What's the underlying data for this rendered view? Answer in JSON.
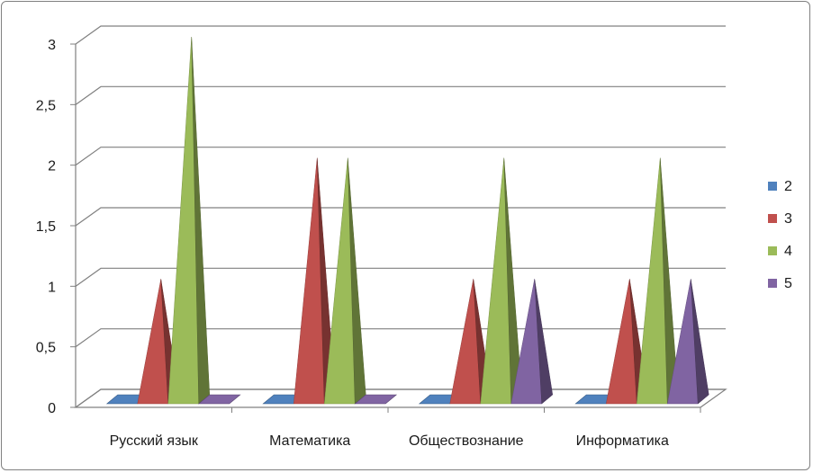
{
  "chart_data": {
    "type": "bar",
    "subtype": "3d-pyramid-clustered",
    "categories": [
      "Русский язык",
      "Математика",
      "Обществознание",
      "Информатика"
    ],
    "series": [
      {
        "name": "2",
        "values": [
          0,
          0,
          0,
          0
        ],
        "color": "#4F81BD"
      },
      {
        "name": "3",
        "values": [
          1,
          2,
          1,
          1
        ],
        "color": "#C0504D"
      },
      {
        "name": "4",
        "values": [
          3,
          2,
          2,
          2
        ],
        "color": "#9BBB59"
      },
      {
        "name": "5",
        "values": [
          0,
          0,
          1,
          1
        ],
        "color": "#8064A2"
      }
    ],
    "yticks": [
      "0",
      "0,5",
      "1",
      "1,5",
      "2",
      "2,5",
      "3"
    ],
    "ylim": [
      0,
      3
    ],
    "grid": true,
    "legend": "right"
  }
}
